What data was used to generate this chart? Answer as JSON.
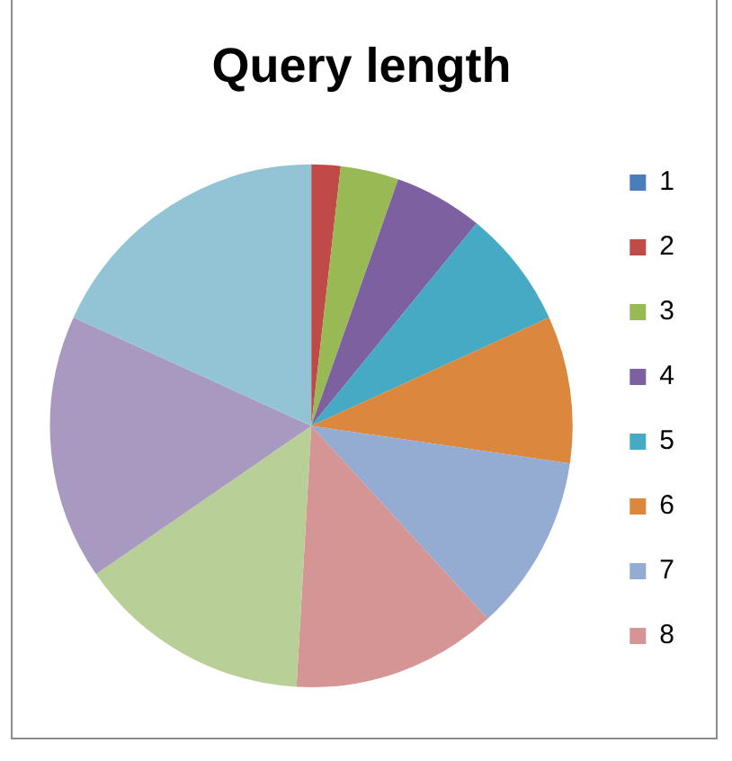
{
  "chart_data": {
    "type": "pie",
    "title": "Query length",
    "categories": [
      "1",
      "2",
      "3",
      "4",
      "5",
      "6",
      "7",
      "8",
      null,
      null,
      null
    ],
    "values": [
      0,
      1.8,
      3.6,
      5.5,
      7.3,
      9.1,
      10.9,
      12.7,
      14.5,
      16.4,
      18.2
    ],
    "colors": [
      "#4a7ebb",
      "#be4b48",
      "#98b954",
      "#7d60a0",
      "#46aac5",
      "#db873e",
      "#94abd2",
      "#d59594",
      "#b9cf98",
      "#a899c0",
      "#93c4d6"
    ],
    "legend": "right"
  }
}
